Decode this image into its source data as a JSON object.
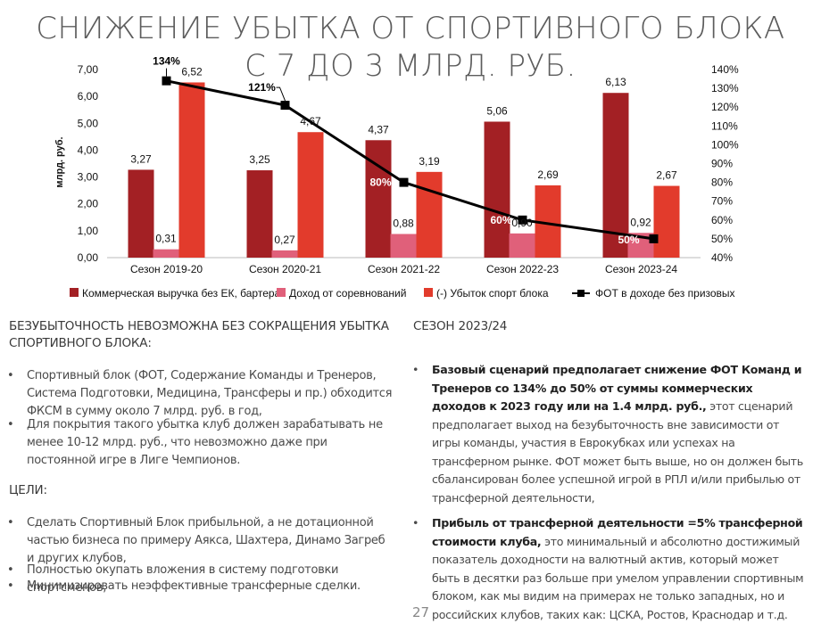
{
  "title": {
    "line1": "СНИЖЕНИЕ УБЫТКА ОТ СПОРТИВНОГО БЛОКА",
    "line2": "С 7 ДО 3 МЛРД. РУБ."
  },
  "chart_data": {
    "type": "bar",
    "categories": [
      "Сезон 2019-20",
      "Сезон 2020-21",
      "Сезон 2021-22",
      "Сезон 2022-23",
      "Сезон 2023-24"
    ],
    "ylabel": "млрд. руб.",
    "ylim": [
      0,
      7
    ],
    "yticks": [
      "0,00",
      "1,00",
      "2,00",
      "3,00",
      "4,00",
      "5,00",
      "6,00",
      "7,00"
    ],
    "y2lim": [
      40,
      140
    ],
    "y2ticks": [
      "40%",
      "50%",
      "60%",
      "70%",
      "80%",
      "90%",
      "100%",
      "110%",
      "120%",
      "130%",
      "140%"
    ],
    "series": [
      {
        "name": "Коммерческая выручка без ЕК, бартера",
        "color": "#a32024",
        "values": [
          3.27,
          3.25,
          4.37,
          5.06,
          6.13
        ],
        "labels": [
          "3,27",
          "3,25",
          "4,37",
          "5,06",
          "6,13"
        ]
      },
      {
        "name": "Доход от соревнований",
        "color": "#e0607a",
        "values": [
          0.31,
          0.27,
          0.88,
          0.9,
          0.92
        ],
        "labels": [
          "0,31",
          "0,27",
          "0,88",
          "0,90",
          "0,92"
        ]
      },
      {
        "name": "(-) Убыток спорт блока",
        "color": "#e23b2c",
        "values": [
          6.52,
          4.67,
          3.19,
          2.69,
          2.67
        ],
        "labels": [
          "6,52",
          "4,67",
          "3,19",
          "2,69",
          "2,67"
        ]
      },
      {
        "name": "ФОТ в доходе без призовых",
        "color": "#000000",
        "type": "line",
        "axis": "right",
        "values": [
          134,
          121,
          80,
          60,
          50
        ],
        "labels": [
          "134%",
          "121%",
          "80%",
          "60%",
          "50%"
        ]
      }
    ]
  },
  "left": {
    "heading1": "БЕЗУБЫТОЧНОСТЬ НЕВОЗМОЖНА БЕЗ СОКРАЩЕНИЯ УБЫТКА СПОРТИВНОГО БЛОКА:",
    "bullets1": [
      "Спортивный блок (ФОТ, Содержание Команды и Тренеров, Система Подготовки, Медицина, Трансферы и пр.) обходится ФКСМ в сумму около 7 млрд. руб. в год,",
      "Для покрытия такого убытка клуб должен зарабатывать не менее 10-12 млрд. руб., что невозможно даже при постоянной игре в Лиге Чемпионов."
    ],
    "heading2": "ЦЕЛИ:",
    "bullets2": [
      "Сделать Спортивный Блок прибыльной, а не дотационной частью бизнеса по примеру Аякса, Шахтера, Динамо Загреб и других клубов,",
      "Полностью окупать вложения в систему подготовки спортсменов,",
      "Минимизировать неэффективные трансферные сделки."
    ]
  },
  "right": {
    "heading": "СЕЗОН 2023/24",
    "b1_bold": "Базовый сценарий предполагает снижение ФОТ Команд и Тренеров со 134% до 50% от суммы коммерческих доходов к 2023 году или на 1.4 млрд. руб.,",
    "b1_rest": " этот сценарий предполагает выход на безубыточность вне зависимости от игры команды, участия в Еврокубках или успехах на трансферном рынке. ФОТ может быть выше, но он должен быть сбалансирован более успешной игрой в РПЛ и/или прибылью от трансферной деятельности,",
    "b2_bold": "Прибыль от трансферной деятельности =5% трансферной стоимости клуба,",
    "b2_rest": " это минимальный и абсолютно достижимый показатель доходности на валютный актив, который может быть в десятки раз больше при умелом управлении спортивным блоком, как мы видим на примерах не только западных, но и российских клубов, таких как: ЦСКА, Ростов, Краснодар и т.д."
  },
  "bullet_char": "•",
  "page_number": "27"
}
